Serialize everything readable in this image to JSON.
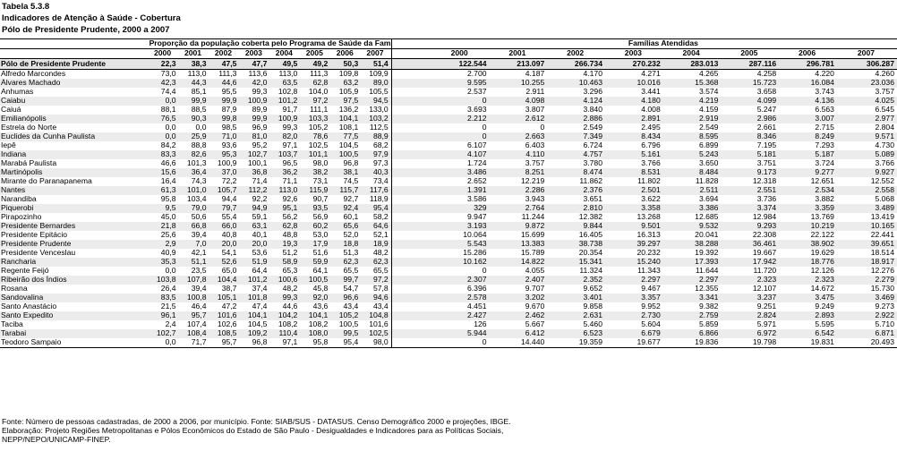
{
  "title": "Tabela 5.3.8",
  "subtitle": "Indicadores de Atenção à Saúde - Cobertura",
  "region_period": "Pólo de Presidente Prudente, 2000 a 2007",
  "group_headers": {
    "proportion": "Proporção da população coberta pelo Programa de Saúde da Família (%)",
    "families": "Famílias Atendidas"
  },
  "years": [
    "2000",
    "2001",
    "2002",
    "2003",
    "2004",
    "2005",
    "2006",
    "2007"
  ],
  "total": {
    "name": "Pólo de Presidente Prudente",
    "pct": [
      "22,3",
      "38,3",
      "47,5",
      "47,7",
      "49,5",
      "49,2",
      "50,3",
      "51,4"
    ],
    "fam": [
      "122.544",
      "213.097",
      "266.734",
      "270.232",
      "283.013",
      "287.116",
      "296.781",
      "306.287"
    ]
  },
  "rows": [
    {
      "name": "Alfredo Marcondes",
      "pct": [
        "73,0",
        "113,0",
        "111,3",
        "113,6",
        "113,0",
        "111,3",
        "109,8",
        "109,9"
      ],
      "fam": [
        "2.700",
        "4.187",
        "4.170",
        "4.271",
        "4.265",
        "4.258",
        "4.220",
        "4.260"
      ]
    },
    {
      "name": "Álvares Machado",
      "pct": [
        "42,3",
        "44,3",
        "44,6",
        "42,0",
        "63,5",
        "62,8",
        "63,2",
        "89,0"
      ],
      "fam": [
        "9.595",
        "10.255",
        "10.463",
        "10.016",
        "15.368",
        "15.723",
        "16.084",
        "23.036"
      ]
    },
    {
      "name": "Anhumas",
      "pct": [
        "74,4",
        "85,1",
        "95,5",
        "99,3",
        "102,8",
        "104,0",
        "105,9",
        "105,5"
      ],
      "fam": [
        "2.537",
        "2.911",
        "3.296",
        "3.441",
        "3.574",
        "3.658",
        "3.743",
        "3.757"
      ]
    },
    {
      "name": "Caiabu",
      "pct": [
        "0,0",
        "99,9",
        "99,9",
        "100,9",
        "101,2",
        "97,2",
        "97,5",
        "94,5"
      ],
      "fam": [
        "0",
        "4.098",
        "4.124",
        "4.180",
        "4.219",
        "4.099",
        "4.136",
        "4.025"
      ]
    },
    {
      "name": "Caiuá",
      "pct": [
        "88,1",
        "88,5",
        "87,9",
        "89,9",
        "91,7",
        "111,1",
        "136,2",
        "133,0"
      ],
      "fam": [
        "3.693",
        "3.807",
        "3.840",
        "4.008",
        "4.159",
        "5.247",
        "6.563",
        "6.545"
      ]
    },
    {
      "name": "Emilianópolis",
      "pct": [
        "76,5",
        "90,3",
        "99,8",
        "99,9",
        "100,9",
        "103,3",
        "104,1",
        "103,2"
      ],
      "fam": [
        "2.212",
        "2.612",
        "2.886",
        "2.891",
        "2.919",
        "2.986",
        "3.007",
        "2.977"
      ]
    },
    {
      "name": "Estrela do Norte",
      "pct": [
        "0,0",
        "0,0",
        "98,5",
        "96,9",
        "99,3",
        "105,2",
        "108,1",
        "112,5"
      ],
      "fam": [
        "0",
        "0",
        "2.549",
        "2.495",
        "2.549",
        "2.661",
        "2.715",
        "2.804"
      ]
    },
    {
      "name": "Euclides da Cunha Paulista",
      "pct": [
        "0,0",
        "25,9",
        "71,0",
        "81,0",
        "82,0",
        "78,6",
        "77,5",
        "88,9"
      ],
      "fam": [
        "0",
        "2.663",
        "7.349",
        "8.434",
        "8.595",
        "8.346",
        "8.249",
        "9.571"
      ]
    },
    {
      "name": "Iepê",
      "pct": [
        "84,2",
        "88,8",
        "93,6",
        "95,2",
        "97,1",
        "102,5",
        "104,5",
        "68,2"
      ],
      "fam": [
        "6.107",
        "6.403",
        "6.724",
        "6.796",
        "6.899",
        "7.195",
        "7.293",
        "4.730"
      ]
    },
    {
      "name": "Indiana",
      "pct": [
        "83,3",
        "82,6",
        "95,3",
        "102,7",
        "103,7",
        "101,1",
        "100,5",
        "97,9"
      ],
      "fam": [
        "4.107",
        "4.110",
        "4.757",
        "5.161",
        "5.243",
        "5.181",
        "5.187",
        "5.089"
      ]
    },
    {
      "name": "Marabá Paulista",
      "pct": [
        "46,6",
        "101,3",
        "100,9",
        "100,1",
        "96,5",
        "98,0",
        "96,8",
        "97,3"
      ],
      "fam": [
        "1.724",
        "3.757",
        "3.780",
        "3.766",
        "3.650",
        "3.751",
        "3.724",
        "3.766"
      ]
    },
    {
      "name": "Martinópolis",
      "pct": [
        "15,6",
        "36,4",
        "37,0",
        "36,8",
        "36,2",
        "38,2",
        "38,1",
        "40,3"
      ],
      "fam": [
        "3.486",
        "8.251",
        "8.474",
        "8.531",
        "8.484",
        "9.173",
        "9.277",
        "9.927"
      ]
    },
    {
      "name": "Mirante do Paranapanema",
      "pct": [
        "16,4",
        "74,3",
        "72,2",
        "71,4",
        "71,1",
        "73,1",
        "74,5",
        "73,4"
      ],
      "fam": [
        "2.652",
        "12.219",
        "11.862",
        "11.802",
        "11.828",
        "12.318",
        "12.651",
        "12.552"
      ]
    },
    {
      "name": "Nantes",
      "pct": [
        "61,3",
        "101,0",
        "105,7",
        "112,2",
        "113,0",
        "115,9",
        "115,7",
        "117,6"
      ],
      "fam": [
        "1.391",
        "2.286",
        "2.376",
        "2.501",
        "2.511",
        "2.551",
        "2.534",
        "2.558"
      ]
    },
    {
      "name": "Narandiba",
      "pct": [
        "95,8",
        "103,4",
        "94,4",
        "92,2",
        "92,6",
        "90,7",
        "92,7",
        "118,9"
      ],
      "fam": [
        "3.586",
        "3.943",
        "3.651",
        "3.622",
        "3.694",
        "3.736",
        "3.882",
        "5.068"
      ]
    },
    {
      "name": "Piquerobi",
      "pct": [
        "9,5",
        "79,0",
        "79,7",
        "94,9",
        "95,1",
        "93,5",
        "92,4",
        "95,4"
      ],
      "fam": [
        "329",
        "2.764",
        "2.810",
        "3.358",
        "3.386",
        "3.374",
        "3.359",
        "3.489"
      ]
    },
    {
      "name": "Pirapozinho",
      "pct": [
        "45,0",
        "50,6",
        "55,4",
        "59,1",
        "56,2",
        "56,9",
        "60,1",
        "58,2"
      ],
      "fam": [
        "9.947",
        "11.244",
        "12.382",
        "13.268",
        "12.685",
        "12.984",
        "13.769",
        "13.419"
      ]
    },
    {
      "name": "Presidente Bernardes",
      "pct": [
        "21,8",
        "66,8",
        "66,0",
        "63,1",
        "62,8",
        "60,2",
        "65,6",
        "64,6"
      ],
      "fam": [
        "3.193",
        "9.872",
        "9.844",
        "9.501",
        "9.532",
        "9.293",
        "10.219",
        "10.165"
      ]
    },
    {
      "name": "Presidente Epitácio",
      "pct": [
        "25,6",
        "39,4",
        "40,8",
        "40,1",
        "48,8",
        "53,0",
        "52,0",
        "52,1"
      ],
      "fam": [
        "10.064",
        "15.699",
        "16.405",
        "16.313",
        "20.041",
        "22.308",
        "22.122",
        "22.441"
      ]
    },
    {
      "name": "Presidente Prudente",
      "pct": [
        "2,9",
        "7,0",
        "20,0",
        "20,0",
        "19,3",
        "17,9",
        "18,8",
        "18,9"
      ],
      "fam": [
        "5.543",
        "13.383",
        "38.738",
        "39.297",
        "38.288",
        "36.461",
        "38.902",
        "39.651"
      ]
    },
    {
      "name": "Presidente Venceslau",
      "pct": [
        "40,9",
        "42,1",
        "54,1",
        "53,6",
        "51,2",
        "51,6",
        "51,3",
        "48,2"
      ],
      "fam": [
        "15.286",
        "15.789",
        "20.354",
        "20.232",
        "19.392",
        "19.667",
        "19.629",
        "18.514"
      ]
    },
    {
      "name": "Rancharia",
      "pct": [
        "35,3",
        "51,1",
        "52,6",
        "51,9",
        "58,9",
        "59,9",
        "62,3",
        "62,3"
      ],
      "fam": [
        "10.162",
        "14.822",
        "15.341",
        "15.240",
        "17.393",
        "17.942",
        "18.776",
        "18.917"
      ]
    },
    {
      "name": "Regente Feijó",
      "pct": [
        "0,0",
        "23,5",
        "65,0",
        "64,4",
        "65,3",
        "64,1",
        "65,5",
        "65,5"
      ],
      "fam": [
        "0",
        "4.055",
        "11.324",
        "11.343",
        "11.644",
        "11.720",
        "12.126",
        "12.276"
      ]
    },
    {
      "name": "Ribeirão dos Índios",
      "pct": [
        "103,8",
        "107,8",
        "104,4",
        "101,2",
        "100,6",
        "100,5",
        "99,7",
        "97,2"
      ],
      "fam": [
        "2.307",
        "2.407",
        "2.352",
        "2.297",
        "2.297",
        "2.323",
        "2.323",
        "2.279"
      ]
    },
    {
      "name": "Rosana",
      "pct": [
        "26,4",
        "39,4",
        "38,7",
        "37,4",
        "48,2",
        "45,8",
        "54,7",
        "57,8"
      ],
      "fam": [
        "6.396",
        "9.707",
        "9.652",
        "9.467",
        "12.355",
        "12.107",
        "14.672",
        "15.730"
      ]
    },
    {
      "name": "Sandovalina",
      "pct": [
        "83,5",
        "100,8",
        "105,1",
        "101,8",
        "99,3",
        "92,0",
        "96,6",
        "94,6"
      ],
      "fam": [
        "2.578",
        "3.202",
        "3.401",
        "3.357",
        "3.341",
        "3.237",
        "3.475",
        "3.469"
      ]
    },
    {
      "name": "Santo Anastácio",
      "pct": [
        "21,5",
        "46,4",
        "47,2",
        "47,4",
        "44,6",
        "43,6",
        "43,4",
        "43,4"
      ],
      "fam": [
        "4.451",
        "9.670",
        "9.858",
        "9.952",
        "9.382",
        "9.251",
        "9.249",
        "9.273"
      ]
    },
    {
      "name": "Santo Expedito",
      "pct": [
        "96,1",
        "95,7",
        "101,6",
        "104,1",
        "104,2",
        "104,1",
        "105,2",
        "104,8"
      ],
      "fam": [
        "2.427",
        "2.462",
        "2.631",
        "2.730",
        "2.759",
        "2.824",
        "2.893",
        "2.922"
      ]
    },
    {
      "name": "Taciba",
      "pct": [
        "2,4",
        "107,4",
        "102,6",
        "104,5",
        "108,2",
        "108,2",
        "100,5",
        "101,6"
      ],
      "fam": [
        "126",
        "5.667",
        "5.460",
        "5.604",
        "5.859",
        "5.971",
        "5.595",
        "5.710"
      ]
    },
    {
      "name": "Tarabai",
      "pct": [
        "102,7",
        "108,4",
        "108,5",
        "109,2",
        "110,4",
        "108,0",
        "99,5",
        "102,5"
      ],
      "fam": [
        "5.944",
        "6.412",
        "6.523",
        "6.679",
        "6.866",
        "6.972",
        "6.542",
        "6.871"
      ]
    },
    {
      "name": "Teodoro Sampaio",
      "pct": [
        "0,0",
        "71,7",
        "95,7",
        "96,8",
        "97,1",
        "95,8",
        "95,4",
        "98,0"
      ],
      "fam": [
        "0",
        "14.440",
        "19.359",
        "19.677",
        "19.836",
        "19.798",
        "19.831",
        "20.493"
      ]
    }
  ],
  "footnotes": [
    "Fonte: Número de pessoas cadastradas, de 2000 a 2006, por município. Fonte: SIAB/SUS - DATASUS. Censo Demográfico 2000 e projeções, IBGE.",
    "Elaboração: Projeto Regiões Metropolitanas e Pólos Econômicos do Estado de São Paulo - Desigualdades e Indicadores para as Políticas Sociais,",
    "NEPP/NEPO/UNICAMP-FINEP."
  ]
}
